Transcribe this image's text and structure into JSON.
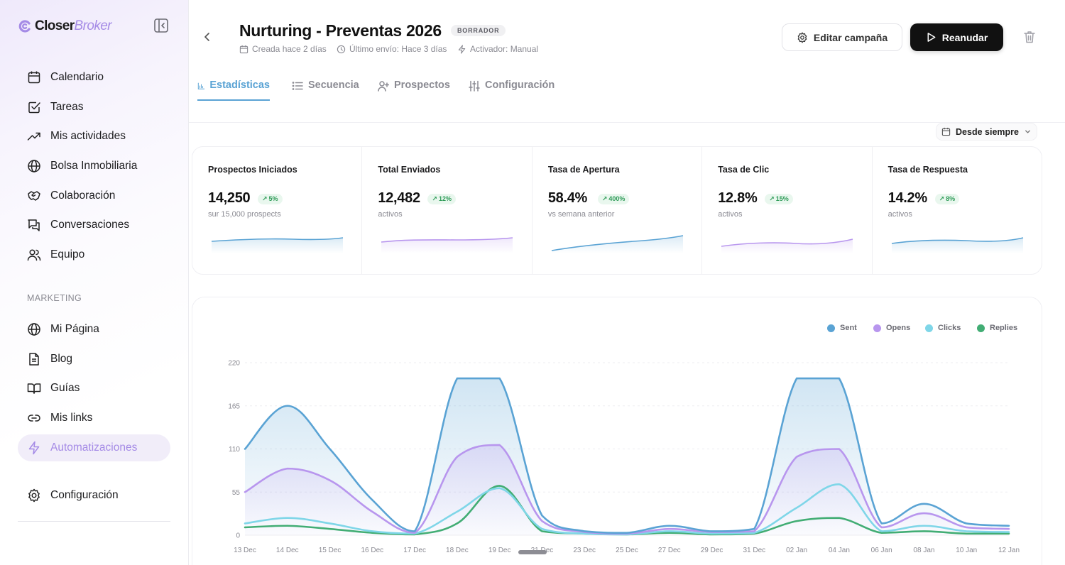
{
  "sidebar": {
    "logo": {
      "part1": "Closer",
      "part2": "Broker",
      "accent": "#a58be6"
    },
    "collapse_icon": "sidebar-collapse-icon",
    "items": [
      {
        "label": "Calendario",
        "icon": "calendar-icon"
      },
      {
        "label": "Tareas",
        "icon": "task-check-icon"
      },
      {
        "label": "Mis actividades",
        "icon": "trending-up-icon"
      },
      {
        "label": "Bolsa Inmobiliaria",
        "icon": "globe-icon"
      },
      {
        "label": "Colaboración",
        "icon": "handshake-icon"
      },
      {
        "label": "Conversaciones",
        "icon": "chat-icon"
      },
      {
        "label": "Equipo",
        "icon": "users-icon"
      }
    ],
    "section_label": "MARKETING",
    "marketing_items": [
      {
        "label": "Mi Página",
        "icon": "globe-icon"
      },
      {
        "label": "Blog",
        "icon": "document-icon"
      },
      {
        "label": "Guías",
        "icon": "book-icon"
      },
      {
        "label": "Mis links",
        "icon": "link-icon"
      },
      {
        "label": "Automatizaciones",
        "icon": "lightning-icon",
        "active": true
      }
    ],
    "settings_label": "Configuración"
  },
  "header": {
    "title": "Nurturing - Preventas 2026",
    "badge": "BORRADOR",
    "meta": {
      "created": "Creada hace 2 días",
      "last_send": "Último envío: Hace 3 días",
      "trigger": "Activador: Manual"
    },
    "edit_label": "Editar campaña",
    "resume_label": "Reanudar"
  },
  "tabs": [
    {
      "label": "Estadísticas",
      "active": true
    },
    {
      "label": "Secuencia"
    },
    {
      "label": "Prospectos"
    },
    {
      "label": "Configuración"
    }
  ],
  "range_label": "Desde siempre",
  "stats": [
    {
      "label": "Prospectos Iniciados",
      "value": "14,250",
      "trend": "5%",
      "sub": "sur 15,000 prospects",
      "color": "#5aa3d4"
    },
    {
      "label": "Total Enviados",
      "value": "12,482",
      "trend": "12%",
      "sub": "activos",
      "color": "#b896ee"
    },
    {
      "label": "Tasa de Apertura",
      "value": "58.4%",
      "trend": "400%",
      "sub": "vs semana anterior",
      "color": "#5aa3d4"
    },
    {
      "label": "Tasa de Clic",
      "value": "12.8%",
      "trend": "15%",
      "sub": "activos",
      "color": "#b896ee"
    },
    {
      "label": "Tasa de Respuesta",
      "value": "14.2%",
      "trend": "8%",
      "sub": "activos",
      "color": "#5aa3d4"
    }
  ],
  "chart_data": {
    "type": "area",
    "legend_position": "top-right",
    "grid": true,
    "ylim": [
      0,
      220
    ],
    "yticks": [
      0,
      55,
      110,
      165,
      220
    ],
    "x": [
      "13 Dec",
      "14 Dec",
      "15 Dec",
      "16 Dec",
      "17 Dec",
      "18 Dec",
      "19 Dec",
      "21 Dec",
      "23 Dec",
      "25 Dec",
      "27 Dec",
      "29 Dec",
      "31 Dec",
      "02 Jan",
      "04 Jan",
      "06 Jan",
      "08 Jan",
      "10 Jan",
      "12 Jan"
    ],
    "series": [
      {
        "name": "Sent",
        "color": "#5aa3d4",
        "values": [
          110,
          165,
          110,
          45,
          5,
          200,
          200,
          25,
          5,
          3,
          12,
          5,
          8,
          200,
          200,
          15,
          40,
          15,
          12
        ]
      },
      {
        "name": "Opens",
        "color": "#b896ee",
        "values": [
          55,
          85,
          70,
          30,
          3,
          100,
          115,
          18,
          4,
          2,
          8,
          4,
          5,
          100,
          110,
          10,
          28,
          10,
          8
        ]
      },
      {
        "name": "Clicks",
        "color": "#7fd6e8",
        "values": [
          15,
          22,
          15,
          5,
          2,
          30,
          60,
          8,
          2,
          1,
          5,
          2,
          3,
          35,
          65,
          5,
          12,
          5,
          4
        ]
      },
      {
        "name": "Replies",
        "color": "#42ad74",
        "values": [
          10,
          12,
          8,
          3,
          1,
          15,
          63,
          5,
          2,
          1,
          3,
          1,
          2,
          18,
          22,
          3,
          5,
          2,
          2
        ]
      }
    ]
  }
}
